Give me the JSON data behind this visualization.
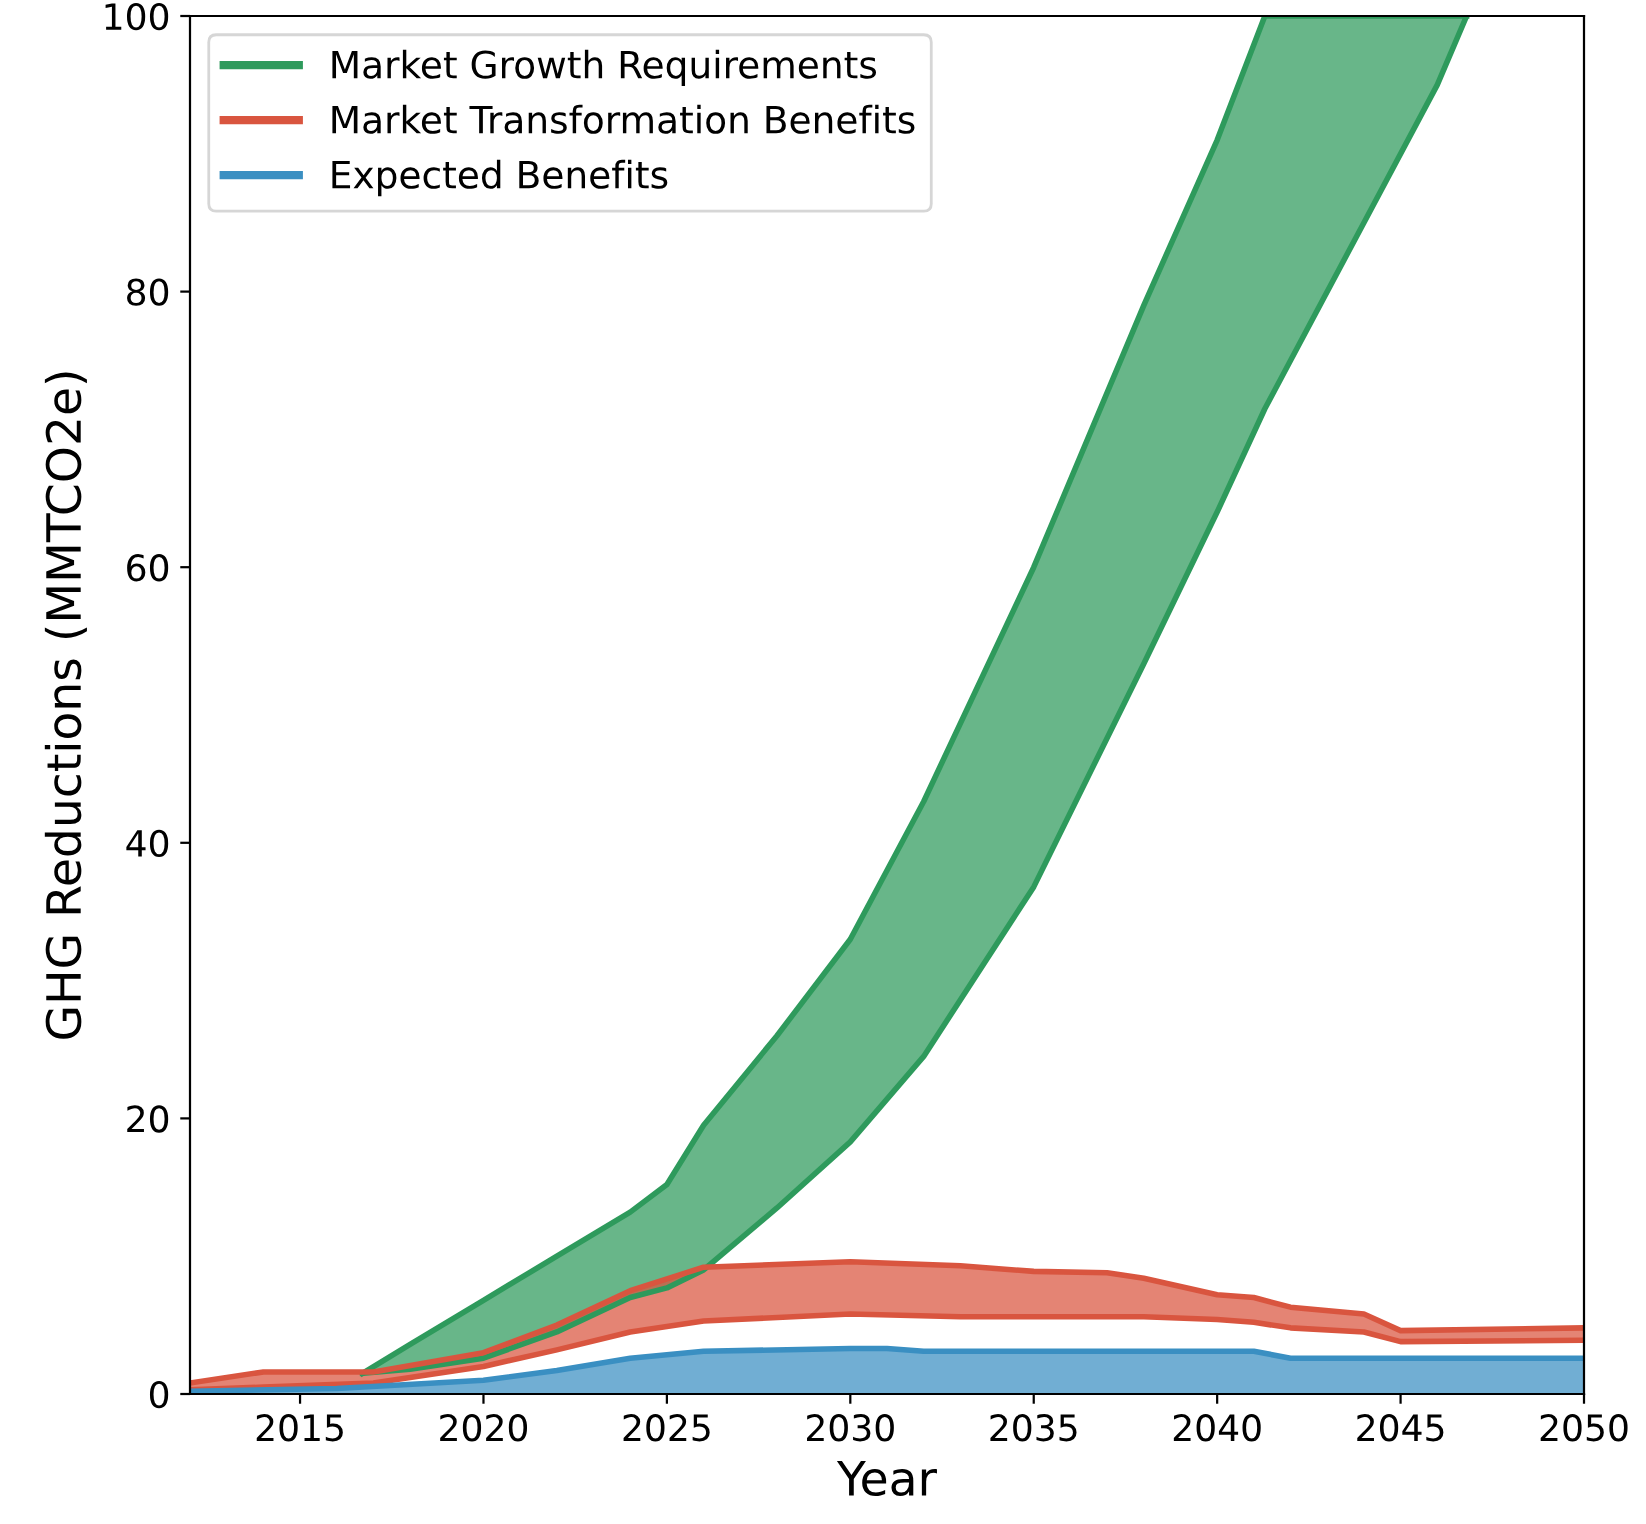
{
  "chart_data": {
    "type": "line",
    "xlabel": "Year",
    "ylabel": "GHG Reductions (MMTCO2e)",
    "xlim": [
      2012,
      2050
    ],
    "ylim": [
      0,
      100
    ],
    "xticks": [
      2015,
      2020,
      2025,
      2030,
      2035,
      2040,
      2045,
      2050
    ],
    "yticks": [
      0,
      20,
      40,
      60,
      80,
      100
    ],
    "grid": false,
    "legend": "top left",
    "series": [
      {
        "name": "Market Growth Requirements",
        "color": "#2e9a5c",
        "x": [
          2016.7,
          2018,
          2020,
          2022,
          2024,
          2025,
          2026,
          2028,
          2030,
          2032,
          2035,
          2038,
          2040,
          2041.3,
          2042,
          2044,
          2046,
          2046.8
        ],
        "values": [
          1.5,
          3.6,
          6.8,
          10,
          13.2,
          15.2,
          19.5,
          26,
          33,
          43,
          60,
          79,
          91,
          100,
          100,
          100,
          100,
          100
        ],
        "lower": [
          1.5,
          1.8,
          2.6,
          4.5,
          7,
          7.7,
          9,
          13.5,
          18.3,
          24.5,
          36.8,
          53,
          64,
          71.5,
          75,
          85,
          95,
          100
        ],
        "upper": [
          1.5,
          3.6,
          6.8,
          10,
          13.2,
          15.2,
          19.5,
          26,
          33,
          43,
          60,
          79,
          91,
          100,
          100,
          100,
          100,
          100
        ]
      },
      {
        "color": "#2e9a5c",
        "x": [
          2016.7,
          2018,
          2020,
          2022,
          2024,
          2025,
          2026,
          2028,
          2030,
          2032,
          2035,
          2038,
          2040,
          2041.3,
          2042,
          2044,
          2046,
          2046.8
        ],
        "values": [
          1.5,
          1.8,
          2.6,
          4.5,
          7,
          7.7,
          9,
          13.5,
          18.3,
          24.5,
          36.8,
          53,
          64,
          71.5,
          75,
          85,
          95,
          100
        ]
      },
      {
        "name": "Market Transformation Benefits",
        "color": "#d9553f",
        "x": [
          2012,
          2014,
          2017,
          2020,
          2022,
          2024,
          2026,
          2030,
          2033,
          2035,
          2037,
          2038,
          2040,
          2041,
          2042,
          2044,
          2045,
          2050
        ],
        "values": [
          0.8,
          1.6,
          1.6,
          3,
          5,
          7.5,
          9.2,
          9.6,
          9.3,
          8.9,
          8.8,
          8.4,
          7.2,
          7,
          6.3,
          5.8,
          4.6,
          4.8
        ],
        "lower": [
          0.3,
          0.5,
          0.8,
          2,
          3.2,
          4.5,
          5.3,
          5.8,
          5.6,
          5.6,
          5.6,
          5.6,
          5.4,
          5.2,
          4.8,
          4.5,
          3.8,
          3.9
        ],
        "upper": [
          0.8,
          1.6,
          1.6,
          3,
          5,
          7.5,
          9.2,
          9.6,
          9.3,
          8.9,
          8.8,
          8.4,
          7.2,
          7,
          6.3,
          5.8,
          4.6,
          4.8
        ]
      },
      {
        "color": "#d9553f",
        "x": [
          2012,
          2014,
          2017,
          2020,
          2022,
          2024,
          2026,
          2030,
          2033,
          2035,
          2037,
          2038,
          2040,
          2041,
          2042,
          2044,
          2045,
          2050
        ],
        "values": [
          0.3,
          0.5,
          0.8,
          2,
          3.2,
          4.5,
          5.3,
          5.8,
          5.6,
          5.6,
          5.6,
          5.6,
          5.4,
          5.2,
          4.8,
          4.5,
          3.8,
          3.9
        ]
      },
      {
        "name": "Expected Benefits",
        "type": "area",
        "color": "#3a8fc2",
        "x": [
          2012,
          2016,
          2020,
          2022,
          2024,
          2026,
          2030,
          2031,
          2032,
          2041,
          2042,
          2050
        ],
        "values": [
          0.2,
          0.4,
          1,
          1.7,
          2.6,
          3.1,
          3.3,
          3.3,
          3.1,
          3.1,
          2.6,
          2.6
        ]
      }
    ]
  }
}
